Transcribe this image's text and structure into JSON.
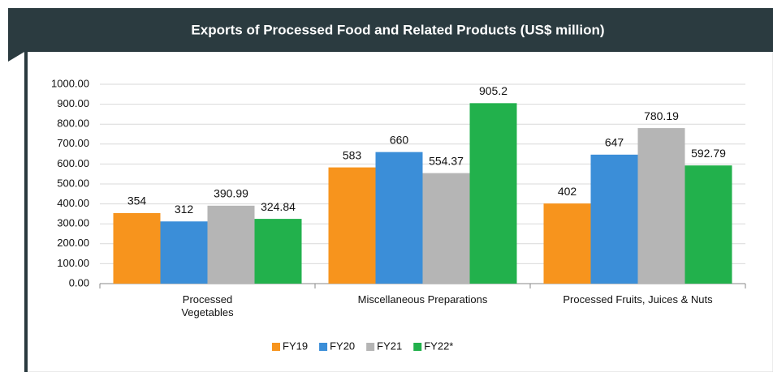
{
  "chart_data": {
    "type": "bar",
    "title": "Exports of Processed Food and Related Products (US$ million)",
    "categories": [
      "Processed Vegetables",
      "Miscellaneous Preparations",
      "Processed Fruits, Juices & Nuts"
    ],
    "series": [
      {
        "name": "FY19",
        "color": "#f7941d",
        "values": [
          354,
          583,
          402
        ]
      },
      {
        "name": "FY20",
        "color": "#3b8ed8",
        "values": [
          312,
          660,
          647
        ]
      },
      {
        "name": "FY21",
        "color": "#b5b5b5",
        "values": [
          390.99,
          554.37,
          780.19
        ]
      },
      {
        "name": "FY22*",
        "color": "#22b14c",
        "values": [
          324.84,
          905.2,
          592.79
        ]
      }
    ],
    "ylim": [
      0,
      1000
    ],
    "yticks": [
      {
        "value": 0,
        "label": "0.00"
      },
      {
        "value": 100,
        "label": "100.00"
      },
      {
        "value": 200,
        "label": "200.00"
      },
      {
        "value": 300,
        "label": "300.00"
      },
      {
        "value": 400,
        "label": "400.00"
      },
      {
        "value": 500,
        "label": "500.00"
      },
      {
        "value": 600,
        "label": "600.00"
      },
      {
        "value": 700,
        "label": "700.00"
      },
      {
        "value": 800,
        "label": "800.00"
      },
      {
        "value": 900,
        "label": "900.00"
      },
      {
        "value": 1000,
        "label": "1000.00"
      }
    ],
    "grid": true,
    "legend": "bottom"
  }
}
